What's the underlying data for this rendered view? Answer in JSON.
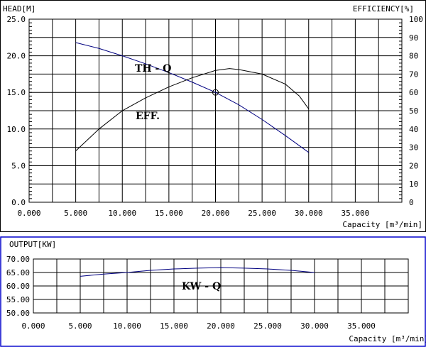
{
  "chart_data": [
    {
      "type": "line",
      "left_axis_label": "HEAD[M]",
      "right_axis_label": "EFFICIENCY[%]",
      "xlabel": "Capacity [m³/min]",
      "xlim": [
        0,
        40
      ],
      "ylim": [
        0,
        25
      ],
      "y2lim": [
        0,
        100
      ],
      "grid": true,
      "x_ticks": [
        "0.000",
        "5.000",
        "10.000",
        "15.000",
        "20.000",
        "25.000",
        "30.000",
        "35.000"
      ],
      "y_ticks": [
        "0.0",
        "5.0",
        "10.0",
        "15.0",
        "20.0",
        "25.0"
      ],
      "y2_ticks": [
        "0",
        "10",
        "20",
        "30",
        "40",
        "50",
        "60",
        "70",
        "80",
        "90",
        "100"
      ],
      "series": [
        {
          "name": "TH - Q",
          "axis": "left",
          "color": "#000080",
          "x": [
            5,
            7.5,
            10,
            12.5,
            15,
            17.5,
            20,
            22.5,
            25,
            27.5,
            30
          ],
          "y": [
            21.8,
            21.0,
            20.0,
            18.9,
            17.7,
            16.4,
            15.0,
            13.3,
            11.3,
            9.1,
            6.8
          ]
        },
        {
          "name": "EFF.",
          "axis": "right",
          "color": "#000000",
          "x": [
            5,
            7.5,
            10,
            12.5,
            15,
            17.5,
            20,
            21.5,
            22.5,
            25,
            27.5,
            29,
            30
          ],
          "y": [
            28,
            40,
            50,
            57,
            63,
            68,
            72,
            73,
            72.5,
            70,
            64.5,
            58,
            51
          ]
        }
      ],
      "operating_point": {
        "x": 20,
        "y": 15
      }
    },
    {
      "type": "line",
      "left_axis_label": "OUTPUT[KW]",
      "xlabel": "Capacity [m³/min]",
      "xlim": [
        0,
        40
      ],
      "ylim": [
        50,
        70
      ],
      "grid": true,
      "x_ticks": [
        "0.000",
        "5.000",
        "10.000",
        "15.000",
        "20.000",
        "25.000",
        "30.000",
        "35.000"
      ],
      "y_ticks": [
        "50.00",
        "55.00",
        "60.00",
        "65.00",
        "70.00"
      ],
      "series": [
        {
          "name": "KW - Q",
          "color": "#000080",
          "x": [
            5,
            7.5,
            10,
            12.5,
            15,
            17.5,
            20,
            22.5,
            25,
            27.5,
            30
          ],
          "y": [
            63.6,
            64.4,
            65.0,
            65.8,
            66.3,
            66.6,
            66.8,
            66.6,
            66.3,
            65.8,
            65.0
          ]
        }
      ]
    }
  ]
}
